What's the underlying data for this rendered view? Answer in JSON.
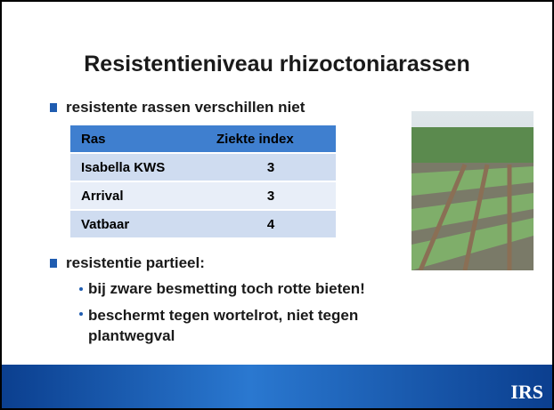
{
  "slide": {
    "title": "Resistentieniveau rhizoctoniarassen",
    "bullets": [
      {
        "text": "resistente rassen verschillen niet"
      },
      {
        "text": "resistentie partieel:",
        "subbullets": [
          "bij zware besmetting toch rotte bieten!",
          "beschermt tegen wortelrot, niet tegen plantwegval"
        ]
      }
    ],
    "table": {
      "header": [
        "Ras",
        "Ziekte index"
      ],
      "rows": [
        [
          "Isabella KWS",
          3
        ],
        [
          "Arrival",
          3
        ],
        [
          "Vatbaar",
          4
        ]
      ]
    },
    "logo": "IRS"
  }
}
